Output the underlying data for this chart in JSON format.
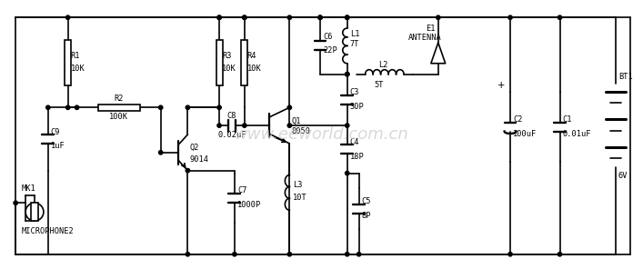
{
  "figsize": [
    7.07,
    2.96
  ],
  "dpi": 100,
  "lw": 1.2,
  "watermark": "www.eeworld.com.cn",
  "watermark_color": "#cccccc",
  "components": {
    "R1": {
      "label1": "R1",
      "label2": "10K"
    },
    "R2": {
      "label1": "R2",
      "label2": "100K"
    },
    "R3": {
      "label1": "R3",
      "label2": "10K"
    },
    "R4": {
      "label1": "R4",
      "label2": "10K"
    },
    "C6": {
      "label1": "C6",
      "label2": "22P"
    },
    "C8": {
      "label1": "C8",
      "label2": "0.02uF"
    },
    "C9": {
      "label1": "C9",
      "label2": "1uF"
    },
    "C7": {
      "label1": "C7",
      "label2": "1000P"
    },
    "C3": {
      "label1": "C3",
      "label2": "30P"
    },
    "C4": {
      "label1": "C4",
      "label2": "18P"
    },
    "C5": {
      "label1": "C5",
      "label2": "8P"
    },
    "C2": {
      "label1": "C2",
      "label2": "100uF"
    },
    "C1": {
      "label1": "C1",
      "label2": "0.01uF"
    },
    "L1": {
      "label1": "L1",
      "label2": "7T"
    },
    "L2": {
      "label1": "L2",
      "label2": "5T"
    },
    "L3": {
      "label1": "L3",
      "label2": "10T"
    },
    "Q1": {
      "label1": "Q1",
      "label2": "8050"
    },
    "Q2": {
      "label1": "Q2",
      "label2": "9014"
    },
    "BT1": {
      "label1": "BT1",
      "label2": "6V"
    },
    "E1": {
      "label1": "E1",
      "label2": "ANTENNA"
    },
    "MK1": {
      "label1": "MK1",
      "label2": "MICROPHONE2"
    }
  }
}
